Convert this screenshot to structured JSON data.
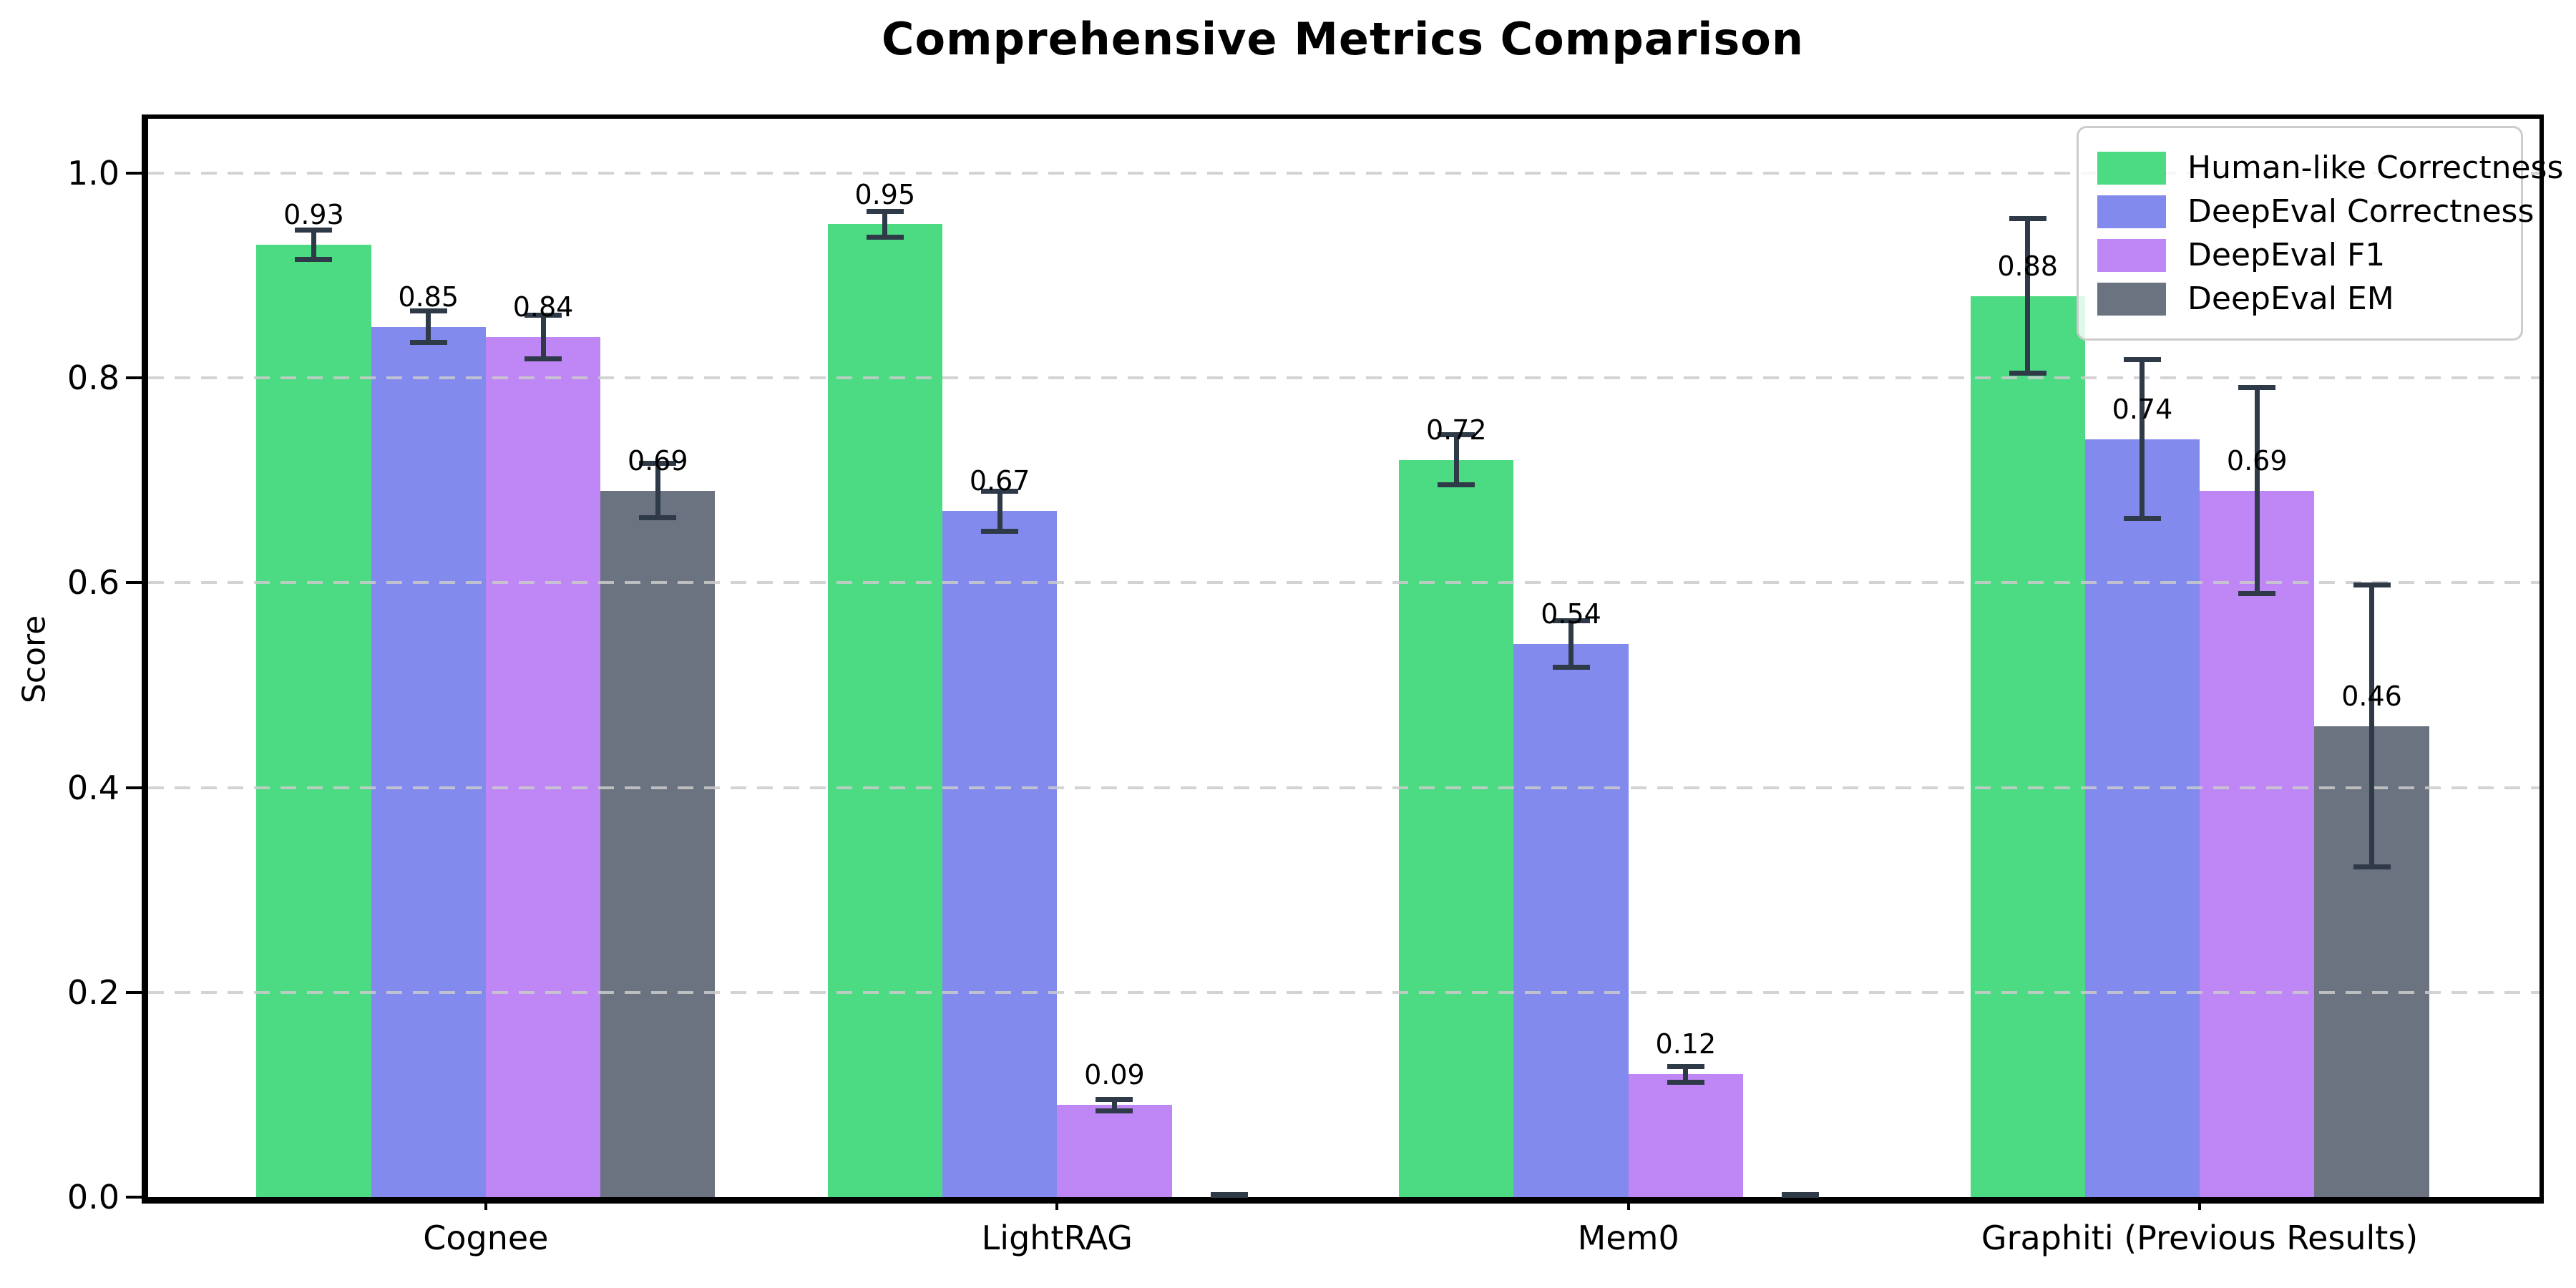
{
  "title": "Comprehensive Metrics Comparison",
  "chart_data": {
    "type": "bar",
    "title": "Comprehensive Metrics Comparison",
    "ylabel": "Score",
    "xlabel": "",
    "categories": [
      "Cognee",
      "LightRAG",
      "Mem0",
      "Graphiti (Previous Results)"
    ],
    "series": [
      {
        "name": "Human-like Correctness",
        "color": "#4cdb82",
        "values": [
          0.93,
          0.95,
          0.72,
          0.88
        ],
        "errors": [
          0.017,
          0.015,
          0.027,
          0.078
        ],
        "labels": [
          "0.93",
          "0.95",
          "0.72",
          "0.88"
        ]
      },
      {
        "name": "DeepEval Correctness",
        "color": "#828aee",
        "values": [
          0.85,
          0.67,
          0.54,
          0.74
        ],
        "errors": [
          0.018,
          0.022,
          0.025,
          0.08
        ],
        "labels": [
          "0.85",
          "0.67",
          "0.54",
          "0.74"
        ]
      },
      {
        "name": "DeepEval F1",
        "color": "#bf86f6",
        "values": [
          0.84,
          0.09,
          0.12,
          0.69
        ],
        "errors": [
          0.024,
          0.008,
          0.01,
          0.103
        ],
        "labels": [
          "0.84",
          "0.09",
          "0.12",
          "0.69"
        ]
      },
      {
        "name": "DeepEval EM",
        "color": "#6b7280",
        "values": [
          0.69,
          0.0,
          0.0,
          0.46
        ],
        "errors": [
          0.029,
          0.004,
          0.004,
          0.14
        ],
        "labels": [
          "0.69",
          "",
          "",
          "0.46"
        ]
      }
    ],
    "yticks": [
      {
        "value": 0.0,
        "label": "0.0"
      },
      {
        "value": 0.2,
        "label": "0.2"
      },
      {
        "value": 0.4,
        "label": "0.4"
      },
      {
        "value": 0.6,
        "label": "0.6"
      },
      {
        "value": 0.8,
        "label": "0.8"
      },
      {
        "value": 1.0,
        "label": "1.0"
      }
    ],
    "ylim": [
      0,
      1.053
    ],
    "grid": "horizontal dashed at 0.2 steps, drawn above bars",
    "legend_position": "upper right",
    "colors": {
      "error_bar": "#2e3a48",
      "gridline": "#cbcbcb",
      "spine": "#000000",
      "background": "#ffffff"
    }
  }
}
